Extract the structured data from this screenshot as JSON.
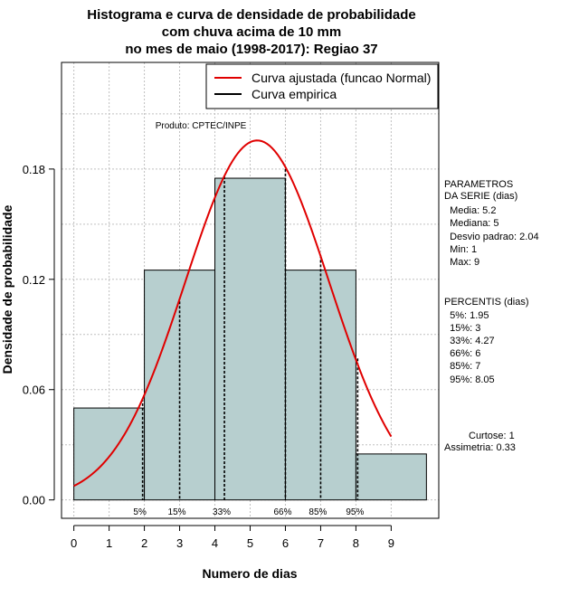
{
  "chart_data": {
    "type": "bar",
    "title_lines": [
      "Histograma e curva de densidade de probabilidade",
      "com chuva acima de 10 mm",
      "no mes de maio (1998-2017): Regiao 37"
    ],
    "xlabel": "Numero de dias",
    "ylabel": "Densidade de probabilidade",
    "xlim": [
      -0.35,
      10.35
    ],
    "ylim": [
      -0.01,
      0.238
    ],
    "x_ticks": [
      "0",
      "1",
      "2",
      "3",
      "4",
      "5",
      "6",
      "7",
      "8",
      "9"
    ],
    "y_ticks": [
      "0.00",
      "0.06",
      "0.12",
      "0.18"
    ],
    "bins": [
      {
        "x0": 0,
        "x1": 2,
        "density": 0.05
      },
      {
        "x0": 2,
        "x1": 4,
        "density": 0.125
      },
      {
        "x0": 4,
        "x1": 6,
        "density": 0.175
      },
      {
        "x0": 6,
        "x1": 8,
        "density": 0.125
      },
      {
        "x0": 8,
        "x1": 10,
        "density": 0.025
      }
    ],
    "fitted_curve": {
      "name": "Curva ajustada (funcao Normal)",
      "mean": 5.2,
      "sd": 2.04,
      "x_range": [
        0,
        9
      ],
      "color": "#e00000"
    },
    "empirical_curve": {
      "name": "Curva empirica",
      "color": "#000000"
    },
    "percentile_markers": [
      {
        "label": "5%",
        "x": 1.95,
        "density": 0.055
      },
      {
        "label": "15%",
        "x": 3,
        "density": 0.108
      },
      {
        "label": "33%",
        "x": 4.27,
        "density": 0.176
      },
      {
        "label": "66%",
        "x": 6,
        "density": 0.18
      },
      {
        "label": "85%",
        "x": 7,
        "density": 0.133
      },
      {
        "label": "95%",
        "x": 8.05,
        "density": 0.077
      }
    ],
    "source_note": "Produto: CPTEC/INPE",
    "colors": {
      "bar_fill": "#b7cfcf",
      "grid": "#c0c0c0"
    }
  },
  "side_panel": {
    "parametros": [
      "PARAMETROS",
      "DA SERIE (dias)",
      "  Media: 5.2",
      "  Mediana: 5",
      "  Desvio padrao: 2.04",
      "  Min: 1",
      "  Max: 9"
    ],
    "percentis": [
      "PERCENTIS (dias)",
      "  5%: 1.95",
      "  15%: 3",
      "  33%: 4.27",
      "  66%: 6",
      "  85%: 7",
      "  95%: 8.05"
    ],
    "curtose": "Curtose: 1",
    "assimetria": "Assimetria: 0.33"
  }
}
